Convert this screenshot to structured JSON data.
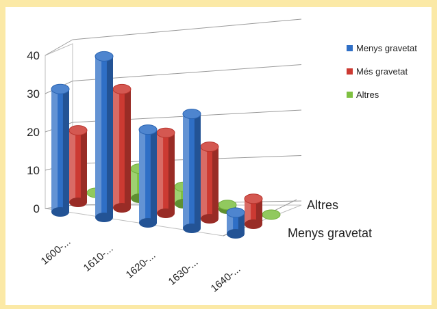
{
  "chart_data": {
    "type": "bar",
    "title": "",
    "xlabel": "",
    "ylabel": "",
    "categories": [
      "1600-...",
      "1610-...",
      "1620-...",
      "1630-...",
      "1640-..."
    ],
    "depth_labels": [
      "Altres",
      "Menys gravetat"
    ],
    "series": [
      {
        "name": "Menys gravetat",
        "values": [
          29,
          38,
          22,
          27,
          5
        ],
        "color": "#2f6fc6"
      },
      {
        "name": "Més gravetat",
        "values": [
          17,
          28,
          19,
          17,
          6
        ],
        "color": "#cc3a32"
      },
      {
        "name": "Altres",
        "values": [
          0,
          7,
          4,
          1,
          0
        ],
        "color": "#7ec041"
      }
    ],
    "yticks": [
      0,
      10,
      20,
      30,
      40
    ],
    "ylim": [
      0,
      40
    ],
    "grid": true,
    "legend_position": "right"
  }
}
